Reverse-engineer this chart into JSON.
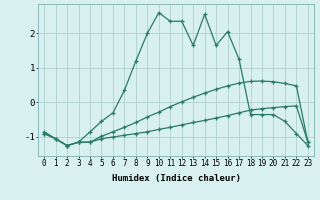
{
  "xlabel": "Humidex (Indice chaleur)",
  "x": [
    0,
    1,
    2,
    3,
    4,
    5,
    6,
    7,
    8,
    9,
    10,
    11,
    12,
    13,
    14,
    15,
    16,
    17,
    18,
    19,
    20,
    21,
    22,
    23
  ],
  "line1": [
    -0.85,
    -1.05,
    -1.25,
    -1.15,
    -0.85,
    -0.55,
    -0.3,
    0.35,
    1.2,
    2.0,
    2.6,
    2.35,
    2.35,
    1.65,
    2.55,
    1.65,
    2.05,
    1.25,
    -0.35,
    -0.35,
    -0.35,
    -0.55,
    -0.9,
    -1.25
  ],
  "line2": [
    -0.9,
    -1.05,
    -1.25,
    -1.15,
    -1.15,
    -1.05,
    -1.0,
    -0.95,
    -0.9,
    -0.85,
    -0.78,
    -0.72,
    -0.65,
    -0.58,
    -0.52,
    -0.45,
    -0.38,
    -0.3,
    -0.22,
    -0.18,
    -0.15,
    -0.12,
    -0.1,
    -1.15
  ],
  "line3": [
    -0.9,
    -1.05,
    -1.25,
    -1.15,
    -1.15,
    -0.98,
    -0.85,
    -0.72,
    -0.58,
    -0.42,
    -0.28,
    -0.12,
    0.02,
    0.15,
    0.27,
    0.38,
    0.48,
    0.56,
    0.61,
    0.62,
    0.6,
    0.55,
    0.48,
    -1.15
  ],
  "line_color": "#2a7a6a",
  "bg_color": "#d8f0f0",
  "grid_color": "#b0d0d0",
  "ylim": [
    -1.55,
    2.85
  ],
  "yticks": [
    -1,
    0,
    1,
    2
  ],
  "xticks": [
    0,
    1,
    2,
    3,
    4,
    5,
    6,
    7,
    8,
    9,
    10,
    11,
    12,
    13,
    14,
    15,
    16,
    17,
    18,
    19,
    20,
    21,
    22,
    23
  ],
  "tick_fontsize": 5.5,
  "label_fontsize": 6.5
}
